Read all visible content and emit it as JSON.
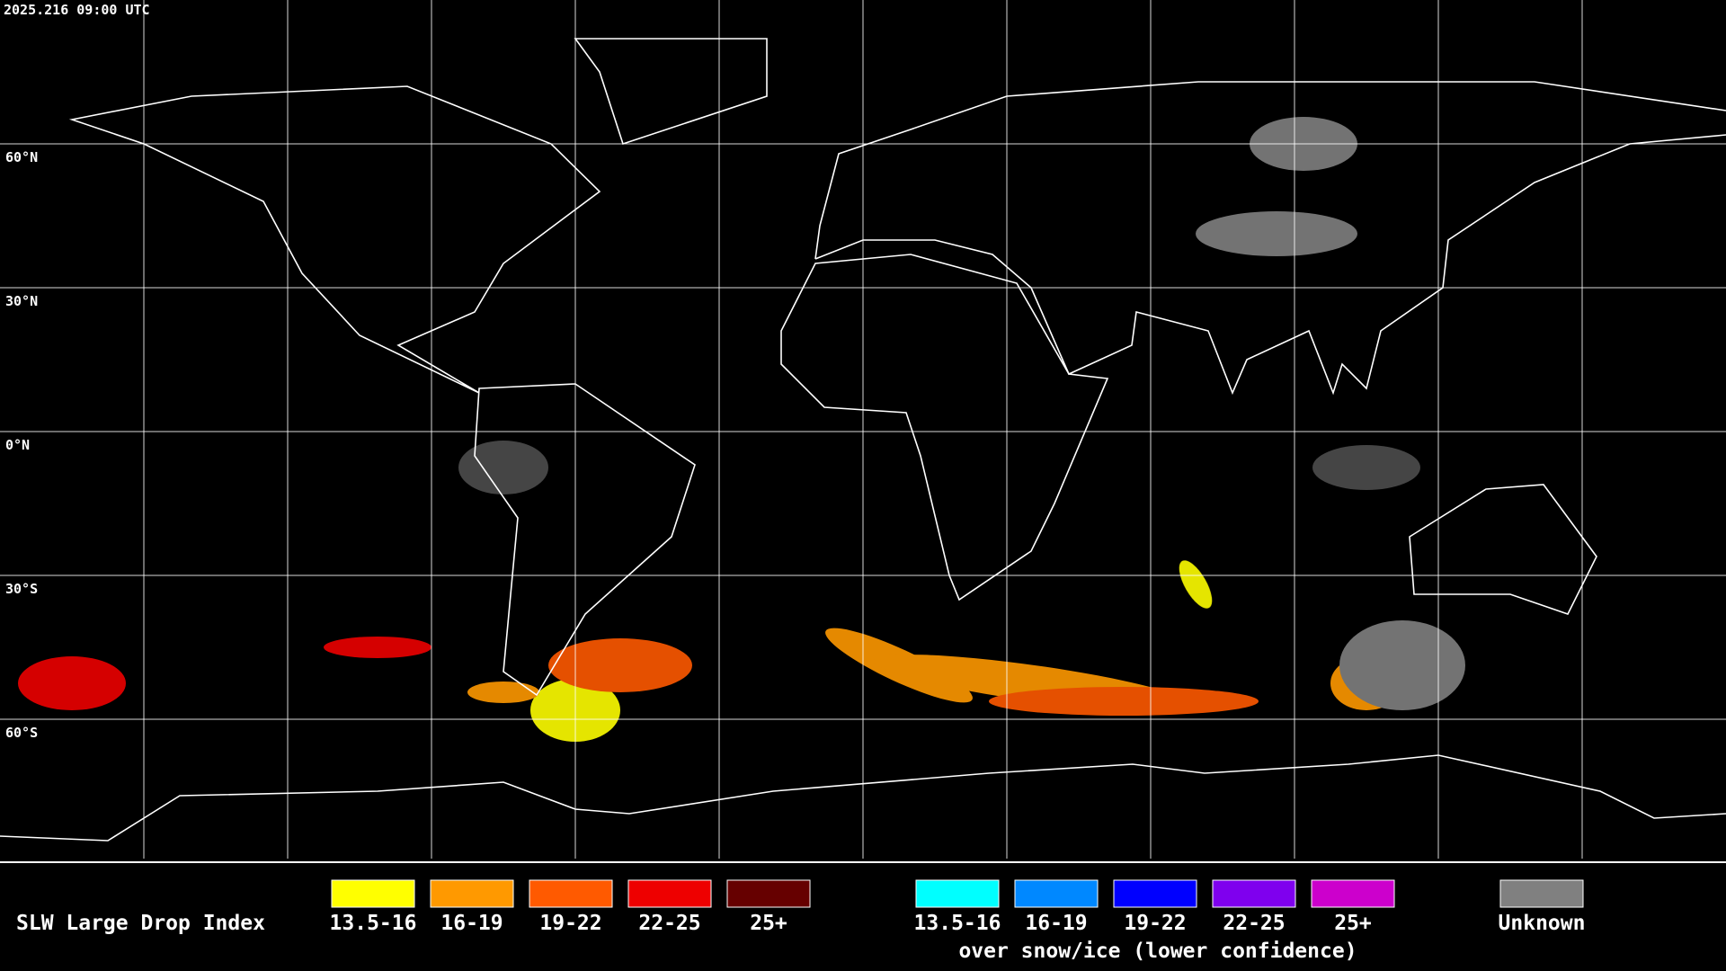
{
  "header": {
    "timestamp": "2025.216 09:00 UTC"
  },
  "grid": {
    "lat_labels": [
      "60°N",
      "30°N",
      "0°N",
      "30°S",
      "60°S"
    ]
  },
  "legend": {
    "title": "SLW Large Drop Index",
    "swatches": [
      {
        "label": "13.5-16",
        "color": "#ffff00"
      },
      {
        "label": "16-19",
        "color": "#ff9900"
      },
      {
        "label": "19-22",
        "color": "#ff5a00"
      },
      {
        "label": "22-25",
        "color": "#ee0000"
      },
      {
        "label": "25+",
        "color": "#660000"
      }
    ],
    "snow_swatches": [
      {
        "label": "13.5-16",
        "color": "#00ffff"
      },
      {
        "label": "16-19",
        "color": "#0088ff"
      },
      {
        "label": "19-22",
        "color": "#0000ff"
      },
      {
        "label": "22-25",
        "color": "#7f00ee"
      },
      {
        "label": "25+",
        "color": "#cc00cc"
      }
    ],
    "snow_caption": "over snow/ice (lower confidence)",
    "unknown": {
      "label": "Unknown",
      "color": "#808080"
    }
  }
}
